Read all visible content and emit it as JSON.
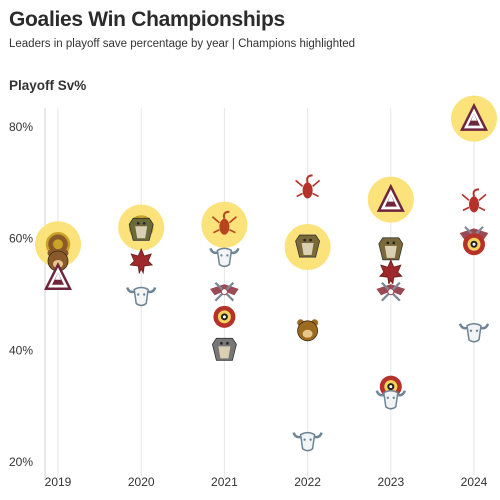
{
  "chart_data": {
    "type": "scatter",
    "title": "Goalies Win Championships",
    "subtitle": "Leaders in playoff save percentage by year | Champions highlighted",
    "ylabel": "Playoff Sv%",
    "xlabel": "",
    "y_ticks": [
      "20%",
      "40%",
      "60%",
      "80%"
    ],
    "y_tick_values": [
      20,
      40,
      60,
      80
    ],
    "ylim": [
      19,
      85
    ],
    "x": [
      2019,
      2020,
      2021,
      2022,
      2023,
      2024
    ],
    "x_labels": [
      "2019",
      "2020",
      "2021",
      "2022",
      "2023",
      "2024"
    ],
    "grid": "vertical",
    "highlight_color": "#fbe27a",
    "points": [
      {
        "year": 2019,
        "value": 59.0,
        "logo": "bruins-logo",
        "color": "#c9a227",
        "champion": true
      },
      {
        "year": 2019,
        "value": 56.0,
        "logo": "bear-logo",
        "color": "#8b5a2b",
        "champion": false
      },
      {
        "year": 2019,
        "value": 53.0,
        "logo": "avalanche-logo",
        "color": "#6f263d",
        "champion": false
      },
      {
        "year": 2020,
        "value": 62.0,
        "logo": "lightning-logo",
        "color": "#c9a227",
        "champion": true
      },
      {
        "year": 2020,
        "value": 61.5,
        "logo": "dog-logo",
        "color": "#6b6b3a",
        "champion": false
      },
      {
        "year": 2020,
        "value": 56.0,
        "logo": "maple-logo",
        "color": "#9e2a2b",
        "champion": false
      },
      {
        "year": 2020,
        "value": 50.0,
        "logo": "bull-logo",
        "color": "#6d8596",
        "champion": false
      },
      {
        "year": 2021,
        "value": 62.5,
        "logo": "scorpion-logo",
        "color": "#b5441f",
        "champion": true
      },
      {
        "year": 2021,
        "value": 57.0,
        "logo": "bull-logo",
        "color": "#6d8596",
        "champion": false
      },
      {
        "year": 2021,
        "value": 50.5,
        "logo": "wings-logo",
        "color": "#9a4a55",
        "champion": false
      },
      {
        "year": 2021,
        "value": 46.0,
        "logo": "target-logo",
        "color": "#b5322a",
        "champion": false
      },
      {
        "year": 2021,
        "value": 40.0,
        "logo": "dog-logo",
        "color": "#777777",
        "champion": false
      },
      {
        "year": 2022,
        "value": 69.0,
        "logo": "scorpion-logo",
        "color": "#b5322a",
        "champion": false
      },
      {
        "year": 2022,
        "value": 58.5,
        "logo": "dog-logo",
        "color": "#7a6a3a",
        "champion": true
      },
      {
        "year": 2022,
        "value": 43.5,
        "logo": "bear-logo",
        "color": "#9c6b1f",
        "champion": false
      },
      {
        "year": 2022,
        "value": 24.0,
        "logo": "bull-logo",
        "color": "#6d8596",
        "champion": false
      },
      {
        "year": 2023,
        "value": 67.0,
        "logo": "avalanche-logo",
        "color": "#6f263d",
        "champion": true
      },
      {
        "year": 2023,
        "value": 58.0,
        "logo": "dog-logo",
        "color": "#7a6a3a",
        "champion": false
      },
      {
        "year": 2023,
        "value": 54.0,
        "logo": "maple-logo",
        "color": "#9e2a2b",
        "champion": false
      },
      {
        "year": 2023,
        "value": 50.5,
        "logo": "wings-logo",
        "color": "#9a4a55",
        "champion": false
      },
      {
        "year": 2023,
        "value": 33.5,
        "logo": "target-logo",
        "color": "#b5322a",
        "champion": false
      },
      {
        "year": 2023,
        "value": 31.5,
        "logo": "bull-logo",
        "color": "#6d8596",
        "champion": false
      },
      {
        "year": 2024,
        "value": 81.5,
        "logo": "avalanche-logo",
        "color": "#6f263d",
        "champion": true
      },
      {
        "year": 2024,
        "value": 66.5,
        "logo": "scorpion-logo",
        "color": "#b5322a",
        "champion": false
      },
      {
        "year": 2024,
        "value": 60.5,
        "logo": "wings-logo",
        "color": "#9a4a55",
        "champion": false
      },
      {
        "year": 2024,
        "value": 59.0,
        "logo": "target-logo",
        "color": "#b5322a",
        "champion": false
      },
      {
        "year": 2024,
        "value": 43.5,
        "logo": "bull-logo",
        "color": "#6d8596",
        "champion": false
      }
    ]
  }
}
